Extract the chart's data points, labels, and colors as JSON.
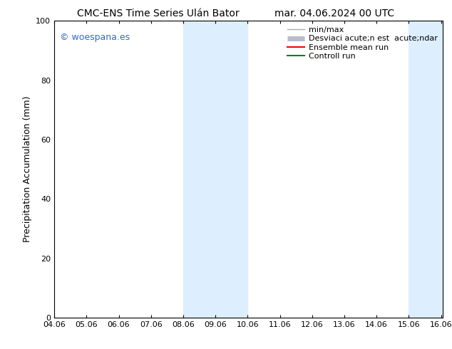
{
  "title_left": "CMC-ENS Time Series Ulán Bator",
  "title_right": "mar. 04.06.2024 00 UTC",
  "ylabel": "Precipitation Accumulation (mm)",
  "ylim": [
    0,
    100
  ],
  "xlim": [
    4.0,
    16.06
  ],
  "xtick_positions": [
    4,
    5,
    6,
    7,
    8,
    9,
    10,
    11,
    12,
    13,
    14,
    15,
    16
  ],
  "xtick_labels": [
    "04.06",
    "05.06",
    "06.06",
    "07.06",
    "08.06",
    "09.06",
    "10.06",
    "11.06",
    "12.06",
    "13.06",
    "14.06",
    "15.06",
    "16.06"
  ],
  "ytick_positions": [
    0,
    20,
    40,
    60,
    80,
    100
  ],
  "shaded_regions": [
    {
      "x_start": 8.0,
      "x_end": 10.0
    },
    {
      "x_start": 15.0,
      "x_end": 16.06
    }
  ],
  "shade_color": "#ddeeff",
  "watermark_text": "© woespana.es",
  "watermark_color": "#3366cc",
  "bg_color": "#ffffff",
  "title_fontsize": 10,
  "axis_label_fontsize": 9,
  "tick_fontsize": 8,
  "legend_fontsize": 8,
  "legend_labels": [
    "min/max",
    "Desviaci acute;n est  acute;ndar",
    "Ensemble mean run",
    "Controll run"
  ],
  "legend_colors": [
    "#aaaaaa",
    "#bbbbcc",
    "red",
    "green"
  ],
  "legend_lws": [
    1.0,
    5.0,
    1.5,
    1.5
  ]
}
